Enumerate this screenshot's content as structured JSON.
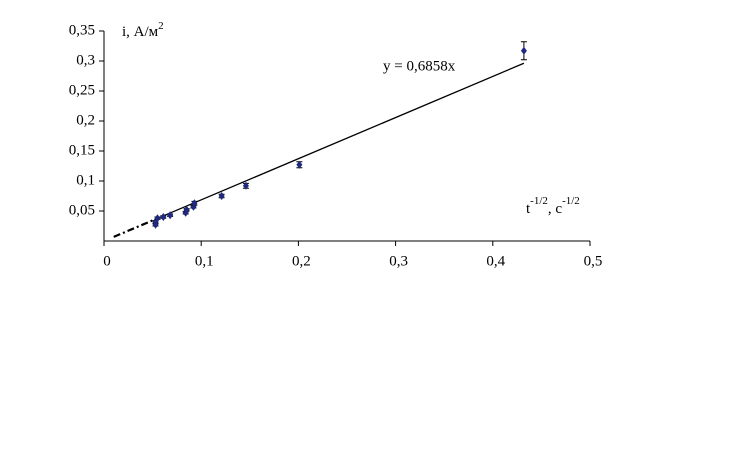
{
  "chart_data": {
    "type": "scatter",
    "y_label": {
      "text": "i, А/м",
      "sup": "2"
    },
    "x_label": {
      "text": "t",
      "sup": "-1/2",
      "text2": ", c",
      "sup2": "-1/2"
    },
    "x": [
      0.053,
      0.053,
      0.055,
      0.061,
      0.068,
      0.084,
      0.085,
      0.092,
      0.093,
      0.121,
      0.146,
      0.201,
      0.432
    ],
    "values": [
      0.027,
      0.032,
      0.038,
      0.04,
      0.043,
      0.047,
      0.052,
      0.057,
      0.063,
      0.075,
      0.092,
      0.127,
      0.317
    ],
    "errors": [
      0.002,
      0.002,
      0.002,
      0.002,
      0.002,
      0.002,
      0.002,
      0.002,
      0.003,
      0.003,
      0.004,
      0.005,
      0.015
    ],
    "color": "#1f2a80",
    "trendline": {
      "label": "y = 0,6858x",
      "slope": 0.6858,
      "xlim": [
        0.01,
        0.432
      ]
    },
    "xlim": [
      0,
      0.5
    ],
    "ylim": [
      0,
      0.35
    ],
    "xticks": [
      0,
      {
        "value": 0.1,
        "label": "0,1"
      },
      {
        "value": 0.2,
        "label": "0,2"
      },
      {
        "value": 0.3,
        "label": "0,3"
      },
      {
        "value": 0.4,
        "label": "0,4"
      },
      {
        "value": 0.5,
        "label": "0,5"
      }
    ],
    "yticks": [
      {
        "value": 0.05,
        "label": "0,05"
      },
      {
        "value": 0.1,
        "label": "0,1"
      },
      {
        "value": 0.15,
        "label": "0,15"
      },
      {
        "value": 0.2,
        "label": "0,2"
      },
      {
        "value": 0.25,
        "label": "0,25"
      },
      {
        "value": 0.3,
        "label": "0,3"
      },
      {
        "value": 0.35,
        "label": "0,35"
      }
    ]
  }
}
